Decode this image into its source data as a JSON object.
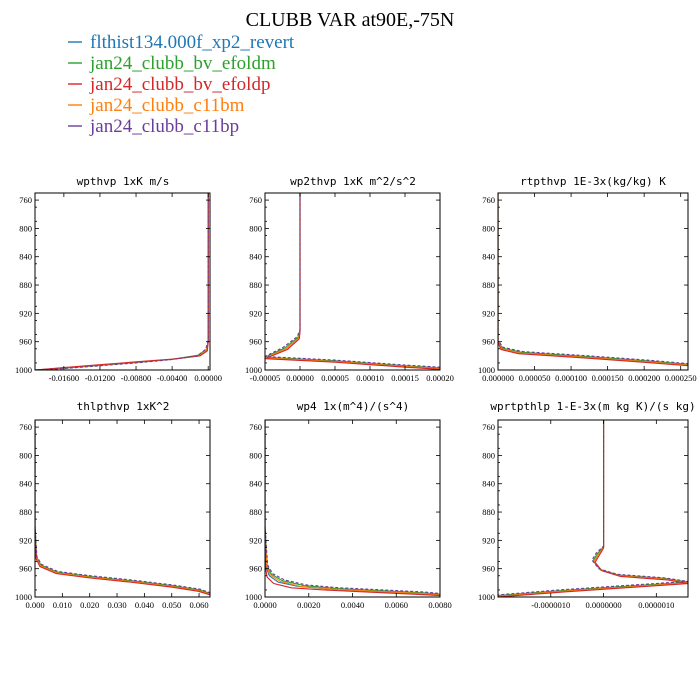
{
  "title": "CLUBB VAR at90E,-75N",
  "legend": [
    {
      "label": "flthist134.000f_xp2_revert",
      "color": "#1f77b4"
    },
    {
      "label": "jan24_clubb_bv_efoldm",
      "color": "#2ca02c"
    },
    {
      "label": "jan24_clubb_bv_efoldp",
      "color": "#d62728"
    },
    {
      "label": "jan24_clubb_c11bm",
      "color": "#ff7f0e"
    },
    {
      "label": "jan24_clubb_c11bp",
      "color": "#6a3d9a"
    }
  ],
  "chart_data": [
    {
      "type": "line",
      "title": "wpthvp  1xK m/s",
      "ylim": [
        1000,
        750
      ],
      "yticks": [
        "760",
        "800",
        "840",
        "880",
        "920",
        "960",
        "1000"
      ],
      "xlim": [
        -0.0192,
        0.0002
      ],
      "xticks": [
        {
          "v": -0.016,
          "label": "-0.01600"
        },
        {
          "v": -0.012,
          "label": "-0.01200"
        },
        {
          "v": -0.008,
          "label": "-0.00800"
        },
        {
          "v": -0.004,
          "label": "-0.00400"
        },
        {
          "v": 0.0,
          "label": "0.00000"
        }
      ],
      "series": [
        {
          "x": [
            -0.0192,
            -0.016,
            -0.012,
            -0.008,
            -0.004,
            -0.001,
            -0.0002,
            0.0,
            0.0,
            0.0
          ],
          "y": [
            1000,
            997,
            993,
            989,
            985,
            980,
            972,
            960,
            900,
            750
          ]
        },
        {
          "x": [
            -0.0192,
            -0.016,
            -0.012,
            -0.008,
            -0.0041,
            -0.0011,
            -0.0002,
            0.0,
            0.0,
            0.0
          ],
          "y": [
            1000,
            997.5,
            993.5,
            989.5,
            985,
            979,
            971,
            960,
            900,
            750
          ]
        },
        {
          "x": [
            -0.0192,
            -0.016,
            -0.012,
            -0.008,
            -0.0039,
            -0.0009,
            -0.0001,
            0.0,
            0.0,
            0.0
          ],
          "y": [
            1000,
            996.5,
            992.5,
            988.5,
            984.5,
            980,
            973,
            961,
            900,
            750
          ]
        },
        {
          "x": [
            -0.0192,
            -0.016,
            -0.012,
            -0.008,
            -0.004,
            -0.001,
            -0.0002,
            0.0,
            0.0,
            0.0
          ],
          "y": [
            1000,
            997,
            993,
            989,
            985,
            980,
            972,
            960,
            900,
            750
          ]
        },
        {
          "x": [
            -0.0192,
            -0.016,
            -0.012,
            -0.008,
            -0.0042,
            -0.0012,
            -0.0003,
            0.0,
            0.0,
            0.0
          ],
          "y": [
            1000,
            998,
            994,
            990,
            985.5,
            980,
            971,
            959,
            900,
            750
          ]
        }
      ]
    },
    {
      "type": "line",
      "title": "wp2thvp   1xK m^2/s^2",
      "ylim": [
        1000,
        750
      ],
      "yticks": [
        "760",
        "800",
        "840",
        "880",
        "920",
        "960",
        "1000"
      ],
      "xlim": [
        -5e-05,
        0.0002
      ],
      "xticks": [
        {
          "v": -5e-05,
          "label": "-0.00005"
        },
        {
          "v": 0.0,
          "label": "0.00000"
        },
        {
          "v": 5e-05,
          "label": "0.00005"
        },
        {
          "v": 0.0001,
          "label": "0.00010"
        },
        {
          "v": 0.00015,
          "label": "0.00015"
        },
        {
          "v": 0.0002,
          "label": "0.00020"
        }
      ],
      "series": [
        {
          "x": [
            0.0,
            0.0,
            0.0,
            -2e-06,
            -2e-05,
            -5e-05,
            5e-05,
            0.00015,
            0.0002
          ],
          "y": [
            750,
            900,
            945,
            955,
            970,
            983,
            988,
            995,
            998
          ]
        },
        {
          "x": [
            0.0,
            0.0,
            0.0,
            -3e-06,
            -2.2e-05,
            -5e-05,
            5e-05,
            0.00015,
            0.0002
          ],
          "y": [
            750,
            900,
            944,
            954,
            969,
            982,
            987,
            994,
            997
          ]
        },
        {
          "x": [
            0.0,
            0.0,
            0.0,
            -1e-06,
            -1.8e-05,
            -5e-05,
            5e-05,
            0.00015,
            0.0002
          ],
          "y": [
            750,
            900,
            946,
            956,
            971,
            984,
            989,
            996,
            999
          ]
        },
        {
          "x": [
            0.0,
            0.0,
            0.0,
            -2e-06,
            -2e-05,
            -5e-05,
            5e-05,
            0.00015,
            0.0002
          ],
          "y": [
            750,
            900,
            945,
            955,
            970,
            983,
            988,
            995,
            998
          ]
        },
        {
          "x": [
            0.0,
            0.0,
            0.0,
            -4e-06,
            -2.4e-05,
            -5e-05,
            5e-05,
            0.00015,
            0.0002
          ],
          "y": [
            750,
            900,
            943,
            953,
            968,
            981,
            986,
            993,
            996
          ]
        }
      ]
    },
    {
      "type": "line",
      "title": "rtpthvp   1E-3x(kg/kg) K",
      "ylim": [
        1000,
        750
      ],
      "yticks": [
        "760",
        "800",
        "840",
        "880",
        "920",
        "960",
        "1000"
      ],
      "xlim": [
        0.0,
        0.00026
      ],
      "xticks": [
        {
          "v": 0.0,
          "label": "0.000000"
        },
        {
          "v": 5e-05,
          "label": "0.000050"
        },
        {
          "v": 0.0001,
          "label": "0.000100"
        },
        {
          "v": 0.00015,
          "label": "0.000150"
        },
        {
          "v": 0.0002,
          "label": "0.000200"
        },
        {
          "v": 0.00025,
          "label": "0.000250"
        }
      ],
      "series": [
        {
          "x": [
            0.0,
            0.0,
            0.0,
            5e-06,
            3e-05,
            0.00012,
            0.0002,
            0.00026
          ],
          "y": [
            750,
            900,
            960,
            970,
            976,
            982,
            988,
            993
          ]
        },
        {
          "x": [
            0.0,
            0.0,
            0.0,
            6e-06,
            3.2e-05,
            0.000122,
            0.000202,
            0.00026
          ],
          "y": [
            750,
            900,
            959,
            969,
            975,
            981,
            987,
            992
          ]
        },
        {
          "x": [
            0.0,
            0.0,
            0.0,
            4e-06,
            2.8e-05,
            0.000118,
            0.000198,
            0.00026
          ],
          "y": [
            750,
            900,
            961,
            971,
            977,
            983,
            989,
            994
          ]
        },
        {
          "x": [
            0.0,
            0.0,
            0.0,
            5e-06,
            3e-05,
            0.00012,
            0.0002,
            0.00026
          ],
          "y": [
            750,
            900,
            960,
            970,
            976,
            982,
            988,
            993
          ]
        },
        {
          "x": [
            0.0,
            0.0,
            0.0,
            7e-06,
            3.4e-05,
            0.000124,
            0.000204,
            0.00026
          ],
          "y": [
            750,
            900,
            958,
            968,
            974,
            980,
            986,
            991
          ]
        }
      ]
    },
    {
      "type": "line",
      "title": "thlpthvp   1xK^2",
      "ylim": [
        1000,
        750
      ],
      "yticks": [
        "760",
        "800",
        "840",
        "880",
        "920",
        "960",
        "1000"
      ],
      "xlim": [
        0.0,
        0.064
      ],
      "xticks": [
        {
          "v": 0.0,
          "label": "0.000"
        },
        {
          "v": 0.01,
          "label": "0.010"
        },
        {
          "v": 0.02,
          "label": "0.020"
        },
        {
          "v": 0.03,
          "label": "0.030"
        },
        {
          "v": 0.04,
          "label": "0.040"
        },
        {
          "v": 0.05,
          "label": "0.050"
        },
        {
          "v": 0.06,
          "label": "0.060"
        }
      ],
      "series": [
        {
          "x": [
            0.0,
            0.0,
            0.0005,
            0.002,
            0.008,
            0.02,
            0.035,
            0.05,
            0.06,
            0.064
          ],
          "y": [
            750,
            900,
            945,
            956,
            966,
            972,
            978,
            985,
            991,
            996
          ]
        },
        {
          "x": [
            0.0,
            0.0,
            0.0006,
            0.0022,
            0.0082,
            0.0202,
            0.0352,
            0.0502,
            0.0602,
            0.064
          ],
          "y": [
            750,
            900,
            944,
            955,
            965,
            971,
            977,
            984,
            990,
            995
          ]
        },
        {
          "x": [
            0.0,
            0.0,
            0.0004,
            0.0018,
            0.0078,
            0.0198,
            0.0348,
            0.0498,
            0.0598,
            0.064
          ],
          "y": [
            750,
            900,
            946,
            957,
            967,
            973,
            979,
            986,
            992,
            997
          ]
        },
        {
          "x": [
            0.0,
            0.0,
            0.0005,
            0.002,
            0.008,
            0.02,
            0.035,
            0.05,
            0.06,
            0.064
          ],
          "y": [
            750,
            900,
            945,
            956,
            966,
            972,
            978,
            985,
            991,
            996
          ]
        },
        {
          "x": [
            0.0,
            0.0,
            0.0007,
            0.0024,
            0.0084,
            0.0204,
            0.0354,
            0.0504,
            0.0604,
            0.064
          ],
          "y": [
            750,
            900,
            943,
            954,
            964,
            970,
            976,
            983,
            989,
            994
          ]
        }
      ]
    },
    {
      "type": "line",
      "title": "wp4   1x(m^4)/(s^4)",
      "ylim": [
        1000,
        750
      ],
      "yticks": [
        "760",
        "800",
        "840",
        "880",
        "920",
        "960",
        "1000"
      ],
      "xlim": [
        0.0,
        0.008
      ],
      "xticks": [
        {
          "v": 0.0,
          "label": "0.0000"
        },
        {
          "v": 0.002,
          "label": "0.0020"
        },
        {
          "v": 0.004,
          "label": "0.0040"
        },
        {
          "v": 0.006,
          "label": "0.0060"
        },
        {
          "v": 0.008,
          "label": "0.0080"
        }
      ],
      "series": [
        {
          "x": [
            0.0,
            0.0,
            5e-05,
            0.0002,
            0.0006,
            0.0015,
            0.003,
            0.005,
            0.007,
            0.008
          ],
          "y": [
            750,
            900,
            958,
            970,
            979,
            985,
            989,
            992,
            995,
            997
          ]
        },
        {
          "x": [
            0.0,
            0.0,
            0.0001,
            0.0003,
            0.0008,
            0.0018,
            0.0033,
            0.0053,
            0.0072,
            0.008
          ],
          "y": [
            750,
            900,
            956,
            968,
            977,
            984,
            988,
            991,
            994,
            996
          ]
        },
        {
          "x": [
            0.0,
            0.0,
            3e-05,
            0.0001,
            0.0004,
            0.0012,
            0.0027,
            0.0047,
            0.0068,
            0.008
          ],
          "y": [
            750,
            900,
            960,
            972,
            981,
            987,
            990,
            993,
            996,
            998
          ]
        },
        {
          "x": [
            0.0,
            0.0,
            8e-05,
            0.00025,
            0.0007,
            0.0016,
            0.0031,
            0.0051,
            0.0071,
            0.008
          ],
          "y": [
            750,
            900,
            957,
            969,
            978,
            985,
            989,
            992,
            995,
            997
          ]
        },
        {
          "x": [
            0.0,
            0.0,
            0.00012,
            0.00035,
            0.0009,
            0.0019,
            0.0034,
            0.0054,
            0.0073,
            0.008
          ],
          "y": [
            750,
            900,
            955,
            967,
            976,
            983,
            987,
            990,
            993,
            995
          ]
        }
      ]
    },
    {
      "type": "line",
      "title": "wprtpthlp   1-E-3x(m kg K)/(s kg)",
      "ylim": [
        1000,
        750
      ],
      "yticks": [
        "760",
        "800",
        "840",
        "880",
        "920",
        "960",
        "1000"
      ],
      "xlim": [
        -2e-06,
        1.6e-06
      ],
      "xticks": [
        {
          "v": -1e-06,
          "label": "-0.0000010"
        },
        {
          "v": 0.0,
          "label": "0.0000000"
        },
        {
          "v": 1e-06,
          "label": "0.0000010"
        }
      ],
      "series": [
        {
          "x": [
            0.0,
            0.0,
            0.0,
            -1e-07,
            -1.8e-07,
            -5e-08,
            3e-07,
            1.2e-06,
            1.6e-06,
            6e-07,
            -8e-07,
            -2e-06
          ],
          "y": [
            750,
            900,
            930,
            940,
            950,
            962,
            970,
            975,
            980,
            985,
            992,
            999
          ]
        },
        {
          "x": [
            0.0,
            0.0,
            0.0,
            -1.2e-07,
            -2e-07,
            -7e-08,
            2.8e-07,
            1.18e-06,
            1.6e-06,
            5.8e-07,
            -8.2e-07,
            -2e-06
          ],
          "y": [
            750,
            900,
            929,
            939,
            949,
            961,
            969,
            974,
            979,
            984,
            991,
            998
          ]
        },
        {
          "x": [
            0.0,
            0.0,
            0.0,
            -8e-08,
            -1.6e-07,
            -3e-08,
            3.2e-07,
            1.22e-06,
            1.6e-06,
            6.2e-07,
            -7.8e-07,
            -2e-06
          ],
          "y": [
            750,
            900,
            931,
            941,
            951,
            963,
            971,
            976,
            981,
            986,
            993,
            1000
          ]
        },
        {
          "x": [
            0.0,
            0.0,
            0.0,
            -1e-07,
            -1.8e-07,
            -5e-08,
            3e-07,
            1.2e-06,
            1.6e-06,
            6e-07,
            -8e-07,
            -2e-06
          ],
          "y": [
            750,
            900,
            930,
            940,
            950,
            962,
            970,
            975,
            980,
            985,
            992,
            999
          ]
        },
        {
          "x": [
            0.0,
            0.0,
            0.0,
            -1.4e-07,
            -2.2e-07,
            -9e-08,
            2.6e-07,
            1.16e-06,
            1.6e-06,
            5.6e-07,
            -8.4e-07,
            -2e-06
          ],
          "y": [
            750,
            900,
            928,
            938,
            948,
            960,
            968,
            973,
            978,
            983,
            990,
            997
          ]
        }
      ]
    }
  ]
}
